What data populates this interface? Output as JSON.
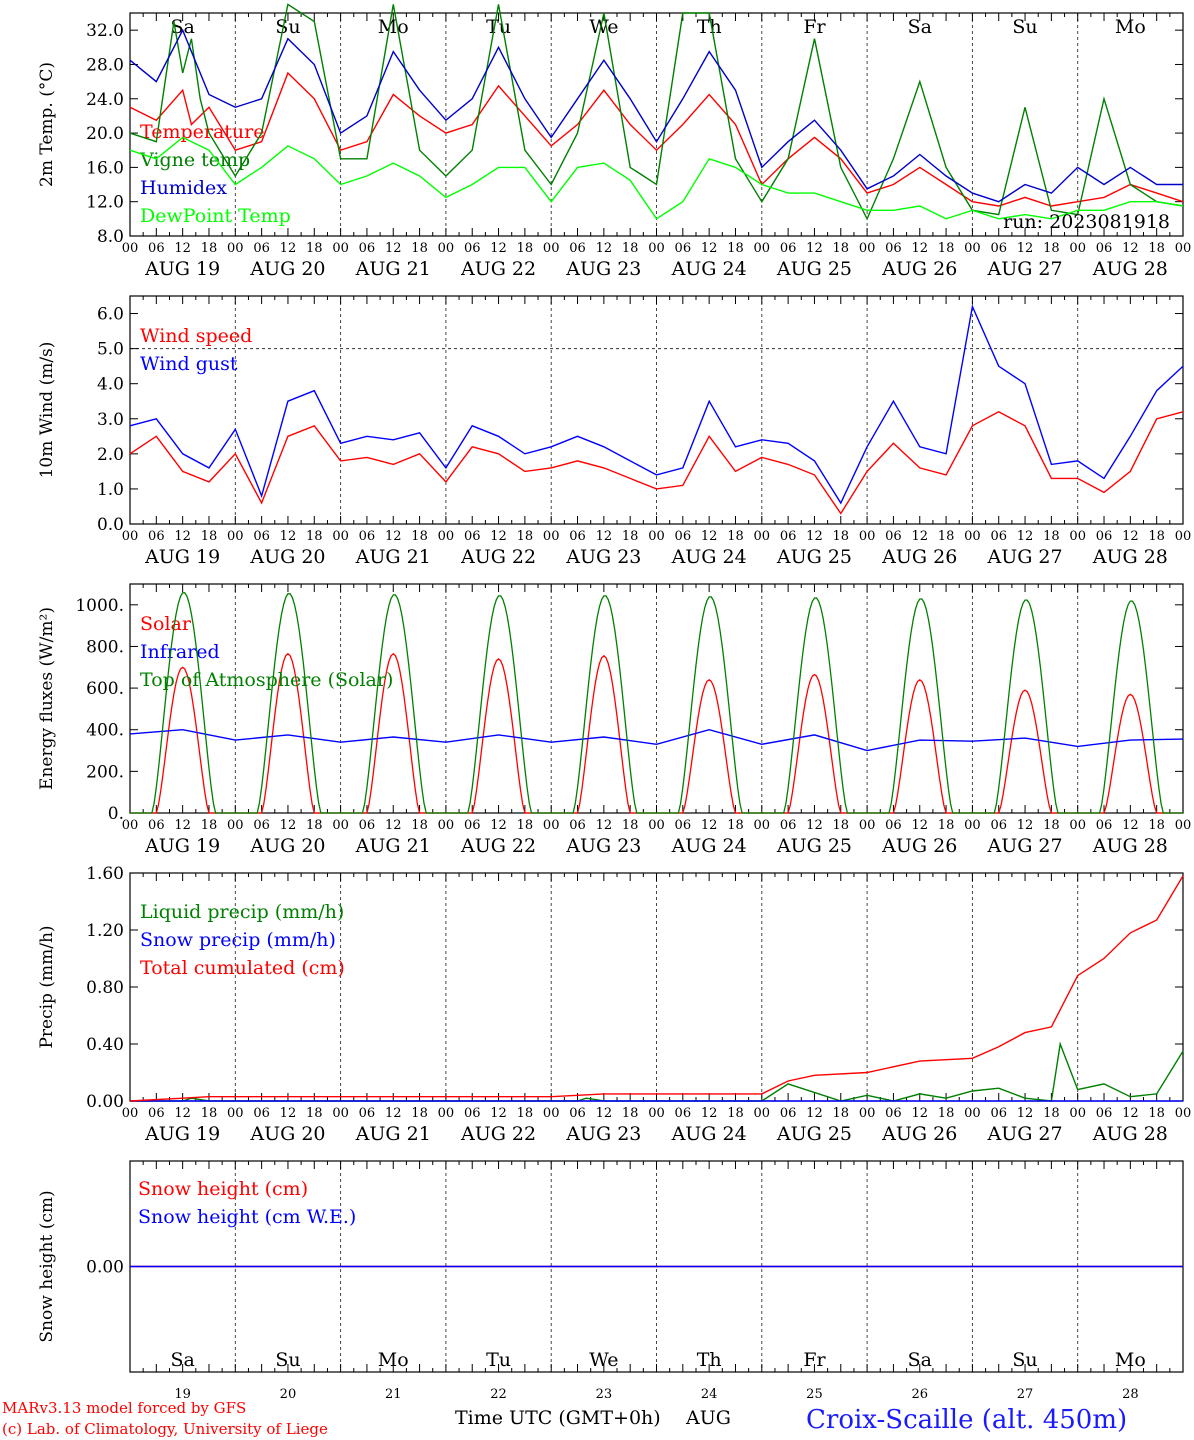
{
  "footer": {
    "credit_line1": "MARv3.13 model forced by GFS",
    "credit_line2": "(c) Lab. of Climatology, University of Liege",
    "xlabel": "Time UTC (GMT+0h)",
    "month": "AUG",
    "station": "Croix-Scaille (alt. 450m)"
  },
  "days": {
    "weekday_labels": [
      "Sa",
      "Su",
      "Mo",
      "Tu",
      "We",
      "Th",
      "Fr",
      "Sa",
      "Su",
      "Mo"
    ],
    "weekend_flags": [
      true,
      true,
      false,
      false,
      false,
      false,
      false,
      true,
      true,
      false
    ],
    "date_labels": [
      "AUG 19",
      "AUG 20",
      "AUG 21",
      "AUG 22",
      "AUG 23",
      "AUG 24",
      "AUG 25",
      "AUG 26",
      "AUG 27",
      "AUG 28"
    ],
    "day_numbers": [
      "19",
      "20",
      "21",
      "22",
      "23",
      "24",
      "25",
      "26",
      "27",
      "28"
    ],
    "hour_ticks": [
      "00",
      "06",
      "12",
      "18"
    ],
    "final_tick": "00"
  },
  "chart_data": [
    {
      "type": "line",
      "ylabel": "2m Temp. (°C)",
      "ylim": [
        8,
        34
      ],
      "yticks": [
        "8.0",
        "12.0",
        "16.0",
        "20.0",
        "24.0",
        "28.0",
        "32.0"
      ],
      "annotation": "run: 2023081918",
      "series": [
        {
          "name": "Temperature",
          "color": "#ff0000",
          "x": [
            0,
            6,
            12,
            14,
            18,
            24,
            30,
            36,
            42,
            48,
            54,
            60,
            66,
            72,
            78,
            84,
            90,
            96,
            102,
            108,
            114,
            120,
            126,
            132,
            138,
            144,
            150,
            156,
            162,
            168,
            174,
            180,
            186,
            192,
            198,
            204,
            210,
            216,
            222,
            228,
            234,
            240
          ],
          "y": [
            23,
            21.5,
            25,
            21,
            23,
            18,
            19,
            27,
            24,
            18,
            19,
            24.5,
            22,
            20,
            21,
            25.5,
            22,
            18.5,
            21,
            25,
            21,
            18,
            21,
            24.5,
            21,
            14,
            17,
            19.5,
            17,
            13,
            14,
            16,
            14,
            12,
            11.5,
            12.5,
            11.5,
            12,
            12.5,
            14,
            13,
            12
          ]
        },
        {
          "name": "Vigne temp",
          "color": "#008000",
          "x": [
            0,
            6,
            10,
            12,
            14,
            16,
            18,
            24,
            30,
            36,
            42,
            48,
            54,
            60,
            66,
            72,
            78,
            84,
            90,
            96,
            102,
            108,
            114,
            120,
            126,
            132,
            138,
            144,
            150,
            156,
            162,
            168,
            174,
            180,
            186,
            192,
            198,
            204,
            210,
            216,
            222,
            228,
            234,
            240
          ],
          "y": [
            20,
            19,
            33,
            27,
            31,
            24,
            20,
            15,
            20,
            35,
            33,
            17,
            17,
            35,
            18,
            15,
            18,
            35,
            18,
            14,
            20,
            34,
            16,
            14,
            34,
            34,
            17,
            12,
            17,
            31,
            16,
            10,
            17,
            26,
            16,
            11,
            10.5,
            23,
            11,
            10.5,
            24,
            14,
            12,
            11.5
          ]
        },
        {
          "name": "Humidex",
          "color": "#0000cc",
          "x": [
            0,
            6,
            12,
            18,
            24,
            30,
            36,
            42,
            48,
            54,
            60,
            66,
            72,
            78,
            84,
            90,
            96,
            102,
            108,
            114,
            120,
            126,
            132,
            138,
            144,
            150,
            156,
            162,
            168,
            174,
            180,
            186,
            192,
            198,
            204,
            210,
            216,
            222,
            228,
            234,
            240
          ],
          "y": [
            28.5,
            26,
            32,
            24.5,
            23,
            24,
            31,
            28,
            20,
            22,
            29.5,
            25,
            21.5,
            24,
            30,
            24,
            19.5,
            24,
            28.5,
            24,
            19,
            24,
            29.5,
            25,
            16,
            19,
            21.5,
            18,
            13.5,
            15,
            17.5,
            15,
            13,
            12,
            14,
            13,
            16,
            14,
            16,
            14,
            14
          ]
        },
        {
          "name": "DewPoint Temp",
          "color": "#00ff00",
          "x": [
            0,
            6,
            12,
            18,
            24,
            30,
            36,
            42,
            48,
            54,
            60,
            66,
            72,
            78,
            84,
            90,
            96,
            102,
            108,
            114,
            120,
            126,
            132,
            138,
            144,
            150,
            156,
            162,
            168,
            174,
            180,
            186,
            192,
            198,
            204,
            210,
            216,
            222,
            228,
            234,
            240
          ],
          "y": [
            18,
            17,
            19.5,
            18,
            14,
            16,
            18.5,
            17,
            14,
            15,
            16.5,
            15,
            12.5,
            14,
            16,
            16,
            12,
            16,
            16.5,
            14.5,
            10,
            12,
            17,
            16,
            14,
            13,
            13,
            12,
            11,
            11,
            11.5,
            10,
            11,
            10,
            10.5,
            10,
            11,
            11,
            12,
            12,
            11.5
          ]
        }
      ]
    },
    {
      "type": "line",
      "ylabel": "10m Wind (m/s)",
      "ylim": [
        0,
        6.5
      ],
      "yticks": [
        "0.0",
        "1.0",
        "2.0",
        "3.0",
        "4.0",
        "5.0",
        "6.0"
      ],
      "series": [
        {
          "name": "Wind speed",
          "color": "#ff0000",
          "x": [
            0,
            6,
            12,
            18,
            24,
            30,
            36,
            42,
            48,
            54,
            60,
            66,
            72,
            78,
            84,
            90,
            96,
            102,
            108,
            114,
            120,
            126,
            132,
            138,
            144,
            150,
            156,
            162,
            168,
            174,
            180,
            186,
            192,
            198,
            204,
            210,
            216,
            222,
            228,
            234,
            240
          ],
          "y": [
            2,
            2.5,
            1.5,
            1.2,
            2,
            0.6,
            2.5,
            2.8,
            1.8,
            1.9,
            1.7,
            2,
            1.2,
            2.2,
            2,
            1.5,
            1.6,
            1.8,
            1.6,
            1.3,
            1,
            1.1,
            2.5,
            1.5,
            1.9,
            1.7,
            1.4,
            0.3,
            1.5,
            2.3,
            1.6,
            1.4,
            2.8,
            3.2,
            2.8,
            1.3,
            1.3,
            0.9,
            1.5,
            3,
            3.2
          ]
        },
        {
          "name": "Wind gust",
          "color": "#0000ff",
          "x": [
            0,
            6,
            12,
            18,
            24,
            30,
            36,
            42,
            48,
            54,
            60,
            66,
            72,
            78,
            84,
            90,
            96,
            102,
            108,
            114,
            120,
            126,
            132,
            138,
            144,
            150,
            156,
            162,
            168,
            174,
            180,
            186,
            192,
            198,
            204,
            210,
            216,
            222,
            228,
            234,
            240
          ],
          "y": [
            2.8,
            3,
            2,
            1.6,
            2.7,
            0.8,
            3.5,
            3.8,
            2.3,
            2.5,
            2.4,
            2.6,
            1.6,
            2.8,
            2.5,
            2,
            2.2,
            2.5,
            2.2,
            1.8,
            1.4,
            1.6,
            3.5,
            2.2,
            2.4,
            2.3,
            1.8,
            0.6,
            2.2,
            3.5,
            2.2,
            2,
            6.2,
            4.5,
            4,
            1.7,
            1.8,
            1.3,
            2.5,
            3.8,
            4.5
          ]
        }
      ]
    },
    {
      "type": "line",
      "ylabel": "Energy fluxes (W/m²)",
      "ylim": [
        0,
        1100
      ],
      "yticks": [
        "0.",
        "200.",
        "400.",
        "600.",
        "800.",
        "1000."
      ],
      "series": [
        {
          "name": "Solar",
          "color": "#ff0000",
          "daily_peaks": [
            700,
            765,
            765,
            740,
            755,
            640,
            665,
            640,
            590,
            570
          ]
        },
        {
          "name": "Infrared",
          "color": "#0000ff",
          "x": [
            0,
            12,
            24,
            36,
            48,
            60,
            72,
            84,
            96,
            108,
            120,
            132,
            144,
            156,
            168,
            180,
            192,
            204,
            216,
            228,
            240
          ],
          "y": [
            380,
            400,
            350,
            375,
            340,
            365,
            340,
            375,
            340,
            365,
            330,
            400,
            330,
            375,
            300,
            350,
            345,
            360,
            320,
            350,
            355
          ]
        },
        {
          "name": "Top of Atmosphere (Solar)",
          "color": "#008000",
          "daily_peaks": [
            1060,
            1055,
            1050,
            1045,
            1045,
            1040,
            1035,
            1030,
            1025,
            1020
          ]
        }
      ]
    },
    {
      "type": "line",
      "ylabel": "Precip (mm/h)",
      "ylim": [
        0,
        1.6
      ],
      "yticks": [
        "0.00",
        "0.40",
        "0.80",
        "1.20",
        "1.60"
      ],
      "series": [
        {
          "name": "Liquid precip (mm/h)",
          "color": "#008000",
          "x": [
            0,
            12,
            14,
            16,
            18,
            96,
            102,
            104,
            106,
            108,
            144,
            150,
            162,
            168,
            174,
            180,
            186,
            192,
            198,
            204,
            210,
            212,
            216,
            222,
            228,
            234,
            240
          ],
          "y": [
            0,
            0,
            0.02,
            0.01,
            0,
            0,
            0,
            0.02,
            0.01,
            0,
            0,
            0.12,
            0,
            0.04,
            0,
            0.05,
            0.02,
            0.07,
            0.09,
            0.02,
            0,
            0.4,
            0.08,
            0.12,
            0.03,
            0.05,
            0.35
          ]
        },
        {
          "name": "Snow precip (mm/h)",
          "color": "#0000ff",
          "x": [
            0,
            240
          ],
          "y": [
            0,
            0
          ]
        },
        {
          "name": "Total cumulated (cm)",
          "color": "#ff0000",
          "x": [
            0,
            12,
            18,
            96,
            108,
            144,
            150,
            156,
            168,
            180,
            192,
            198,
            204,
            210,
            216,
            222,
            228,
            234,
            240
          ],
          "y": [
            0,
            0.02,
            0.03,
            0.03,
            0.05,
            0.05,
            0.14,
            0.18,
            0.2,
            0.28,
            0.3,
            0.38,
            0.48,
            0.52,
            0.88,
            1.0,
            1.18,
            1.27,
            1.58
          ]
        }
      ]
    },
    {
      "type": "line",
      "ylabel": "Snow height (cm)",
      "ylim": [
        -1,
        1
      ],
      "yticks": [
        "0.00"
      ],
      "series": [
        {
          "name": "Snow height (cm)",
          "color": "#ff0000",
          "x": [
            0,
            240
          ],
          "y": [
            0,
            0
          ]
        },
        {
          "name": "Snow height (cm W.E.)",
          "color": "#0000ff",
          "x": [
            0,
            240
          ],
          "y": [
            0,
            0
          ]
        }
      ]
    }
  ]
}
